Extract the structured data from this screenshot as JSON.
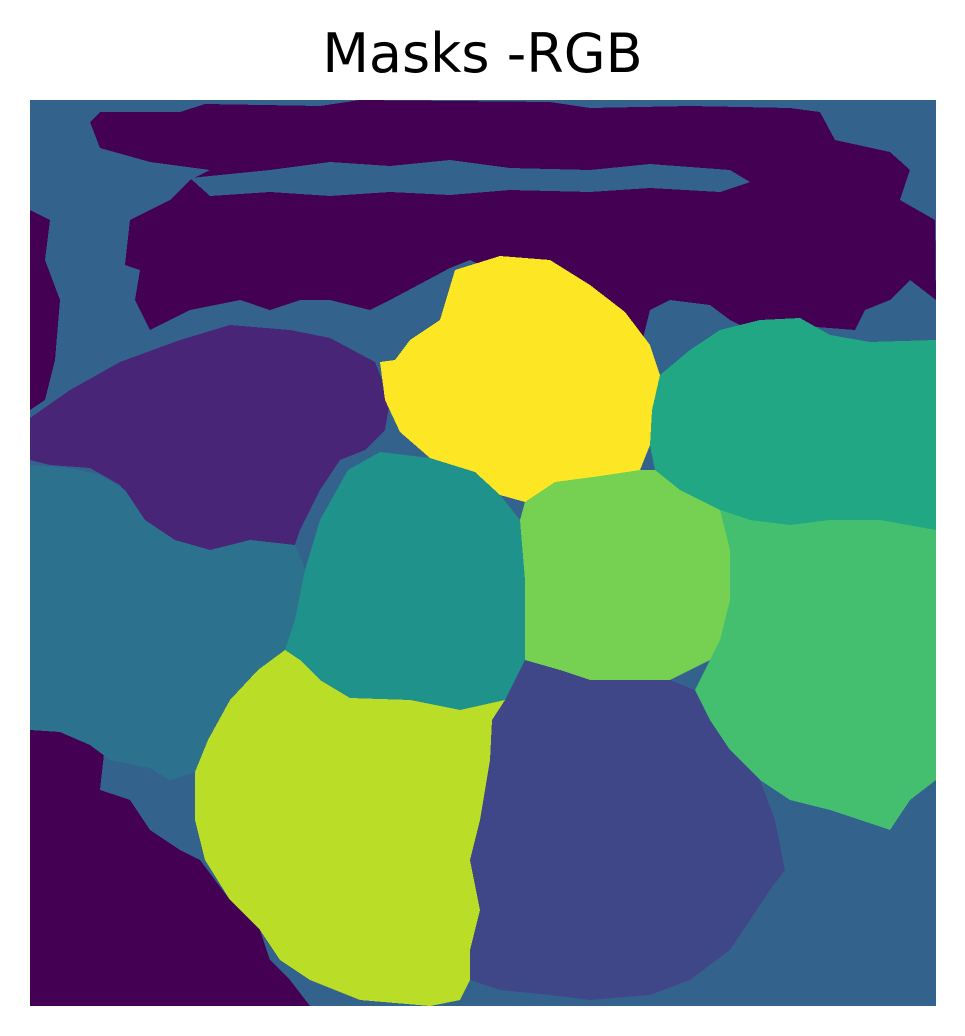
{
  "figure": {
    "title": "Masks -RGB"
  },
  "palette": {
    "background": "#440154",
    "border": "#33638d",
    "segments": [
      "#482576",
      "#3f4788",
      "#2c728e",
      "#20928c",
      "#21a784",
      "#44bf70",
      "#76d153",
      "#bade28",
      "#fde725"
    ]
  }
}
